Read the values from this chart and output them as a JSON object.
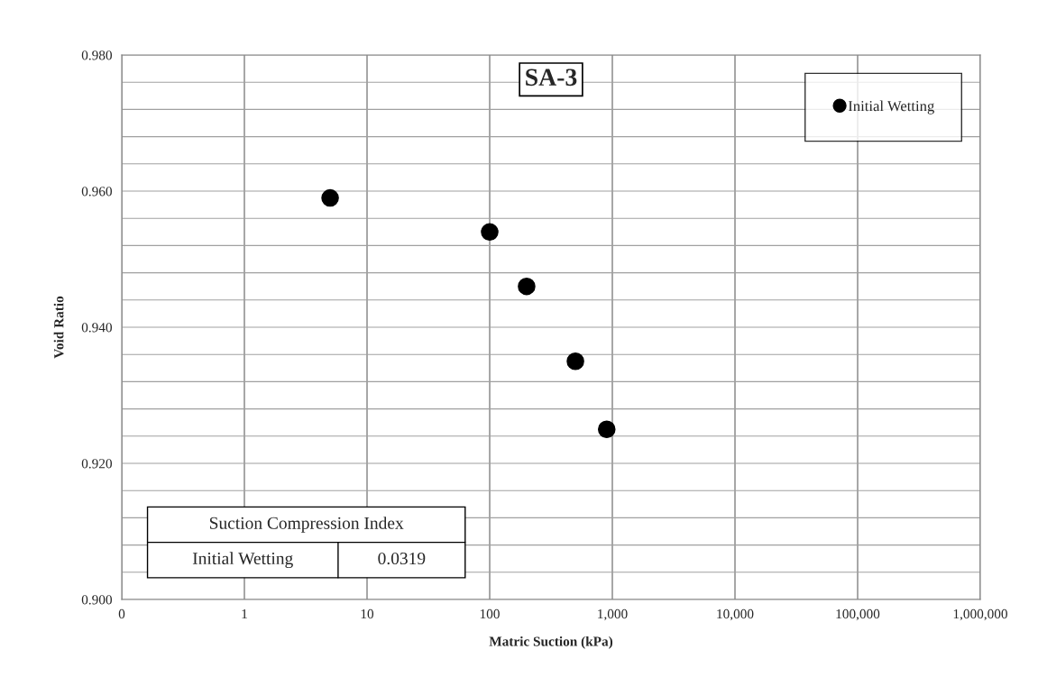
{
  "chart_data": {
    "type": "scatter",
    "title": "SA-3",
    "xlabel": "Matric Suction (kPa)",
    "ylabel": "Void Ratio",
    "x": [
      5,
      100,
      200,
      500,
      900
    ],
    "series": [
      {
        "name": "Initial Wetting",
        "color": "#000000",
        "values": [
          0.959,
          0.954,
          0.946,
          0.935,
          0.925
        ]
      }
    ],
    "log": "x",
    "xlim": [
      0.1,
      1000000
    ],
    "xticks": [
      {
        "value": 0.1,
        "label": "0"
      },
      1,
      10,
      100,
      {
        "value": 1000,
        "label": "1,000"
      },
      {
        "value": 10000,
        "label": "10,000"
      },
      {
        "value": 100000,
        "label": "100,000"
      },
      {
        "value": 1000000,
        "label": "1,000,000"
      }
    ],
    "ylim": [
      0.9,
      0.98
    ],
    "yticks": [
      {
        "value": 0.9,
        "label": "0.900"
      },
      {
        "value": 0.904,
        "label": null
      },
      {
        "value": 0.908,
        "label": null
      },
      {
        "value": 0.912,
        "label": null
      },
      {
        "value": 0.916,
        "label": null
      },
      {
        "value": 0.92,
        "label": "0.920"
      },
      {
        "value": 0.924,
        "label": null
      },
      {
        "value": 0.928,
        "label": null
      },
      {
        "value": 0.932,
        "label": null
      },
      {
        "value": 0.936,
        "label": null
      },
      {
        "value": 0.94,
        "label": "0.940"
      },
      {
        "value": 0.944,
        "label": null
      },
      {
        "value": 0.948,
        "label": null
      },
      {
        "value": 0.952,
        "label": null
      },
      {
        "value": 0.956,
        "label": null
      },
      {
        "value": 0.96,
        "label": "0.960"
      },
      {
        "value": 0.964,
        "label": null
      },
      {
        "value": 0.968,
        "label": null
      },
      {
        "value": 0.972,
        "label": null
      },
      {
        "value": 0.976,
        "label": null
      },
      {
        "value": 0.98,
        "label": "0.980"
      }
    ],
    "grid": true,
    "legend": "top right",
    "marker": "circle",
    "annotations": [
      "Suction Compression Index",
      "Initial Wetting",
      "0.0319"
    ]
  }
}
